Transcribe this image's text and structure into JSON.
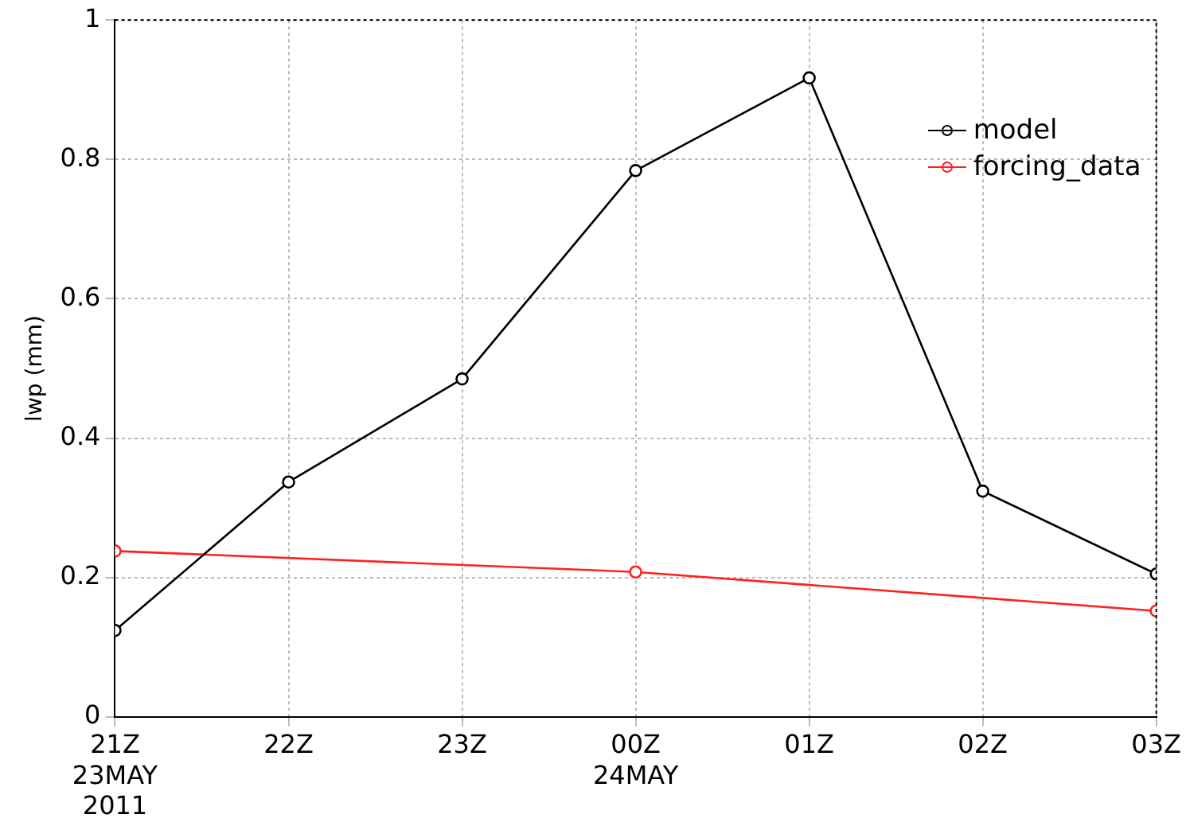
{
  "chart_data": {
    "type": "line",
    "ylabel": "lwp (mm)",
    "xlim": [
      "2011-05-23T21:00",
      "2011-05-24T03:00"
    ],
    "xticks": [
      {
        "value": "2011-05-23T21:00",
        "label": "21Z\n23MAY\n2011"
      },
      {
        "value": "2011-05-23T22:00",
        "label": "22Z"
      },
      {
        "value": "2011-05-23T23:00",
        "label": "23Z"
      },
      {
        "value": "2011-05-24T00:00",
        "label": "00Z\n24MAY"
      },
      {
        "value": "2011-05-24T01:00",
        "label": "01Z"
      },
      {
        "value": "2011-05-24T02:00",
        "label": "02Z"
      },
      {
        "value": "2011-05-24T03:00",
        "label": "03Z"
      }
    ],
    "ylim": [
      0,
      1
    ],
    "yticks": [
      0,
      0.2,
      0.4,
      0.6,
      0.8,
      1
    ],
    "series": [
      {
        "name": "model",
        "color": "#000000",
        "x": [
          "2011-05-23T21:00",
          "2011-05-23T22:00",
          "2011-05-23T23:00",
          "2011-05-24T00:00",
          "2011-05-24T01:00",
          "2011-05-24T02:00",
          "2011-05-24T03:00"
        ],
        "values": [
          0.124,
          0.337,
          0.485,
          0.784,
          0.917,
          0.324,
          0.205
        ]
      },
      {
        "name": "forcing_data",
        "color": "#ff2020",
        "x": [
          "2011-05-23T21:00",
          "2011-05-24T00:00",
          "2011-05-24T03:00"
        ],
        "values": [
          0.238,
          0.208,
          0.152
        ]
      }
    ],
    "grid": true,
    "legend": "top right",
    "marker": "circle",
    "line_style": "solid"
  }
}
